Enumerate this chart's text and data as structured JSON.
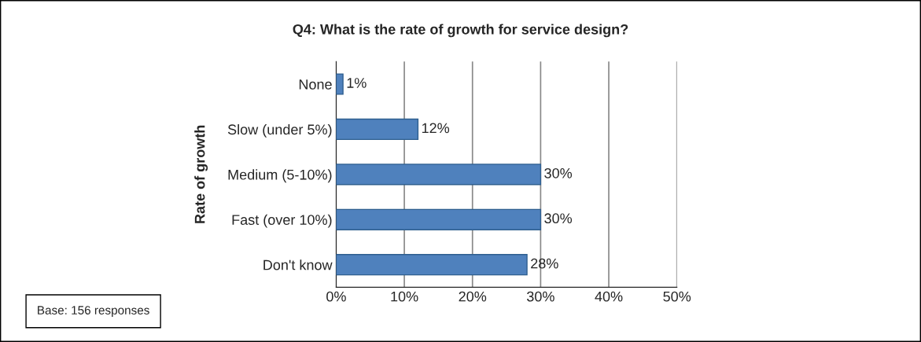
{
  "chart_data": {
    "type": "bar",
    "orientation": "horizontal",
    "title": "Q4: What is the rate of growth for service design?",
    "ylabel": "Rate of growth",
    "categories": [
      "None",
      "Slow (under 5%)",
      "Medium (5-10%)",
      "Fast (over 10%)",
      "Don't know"
    ],
    "values": [
      1,
      12,
      30,
      30,
      28
    ],
    "value_labels": [
      "1%",
      "12%",
      "30%",
      "30%",
      "28%"
    ],
    "color": "#4f81bd",
    "xlim": [
      0,
      50
    ],
    "xticks": [
      {
        "value": 0,
        "label": "0%"
      },
      {
        "value": 10,
        "label": "10%"
      },
      {
        "value": 20,
        "label": "20%"
      },
      {
        "value": 30,
        "label": "30%"
      },
      {
        "value": 40,
        "label": "40%"
      },
      {
        "value": 50,
        "label": "50%"
      }
    ],
    "grid": "x",
    "annotations": [
      "Base: 156 responses"
    ]
  }
}
